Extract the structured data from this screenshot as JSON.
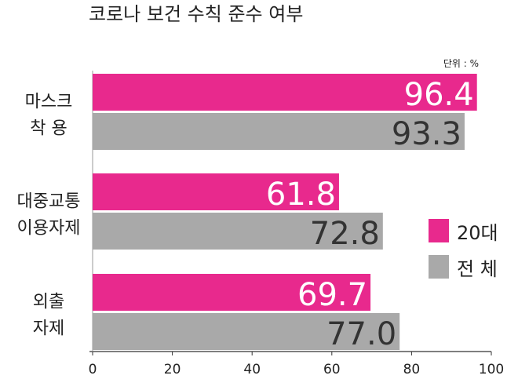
{
  "chart_data": {
    "type": "bar",
    "orientation": "horizontal",
    "title": "코로나 보건 수칙 준수 여부",
    "unit_label": "단위 : %",
    "categories": [
      [
        "마스크",
        "착  용"
      ],
      [
        "대중교통",
        "이용자제"
      ],
      [
        "외출",
        "자제"
      ]
    ],
    "series": [
      {
        "name": "20대",
        "color": "#e8298d",
        "values": [
          96.4,
          61.8,
          69.7
        ]
      },
      {
        "name": "전 체",
        "color": "#a9a9a9",
        "values": [
          93.3,
          72.8,
          77.0
        ]
      }
    ],
    "value_labels": [
      [
        "96.4",
        "61.8",
        "69.7"
      ],
      [
        "93.3",
        "72.8",
        "77.0"
      ]
    ],
    "value_label_colors": [
      "#ffffff",
      "#333333"
    ],
    "xlim": [
      0,
      100
    ],
    "xticks": [
      "0",
      "20",
      "40",
      "60",
      "80",
      "100"
    ],
    "legend_position": "right",
    "grid": false
  }
}
